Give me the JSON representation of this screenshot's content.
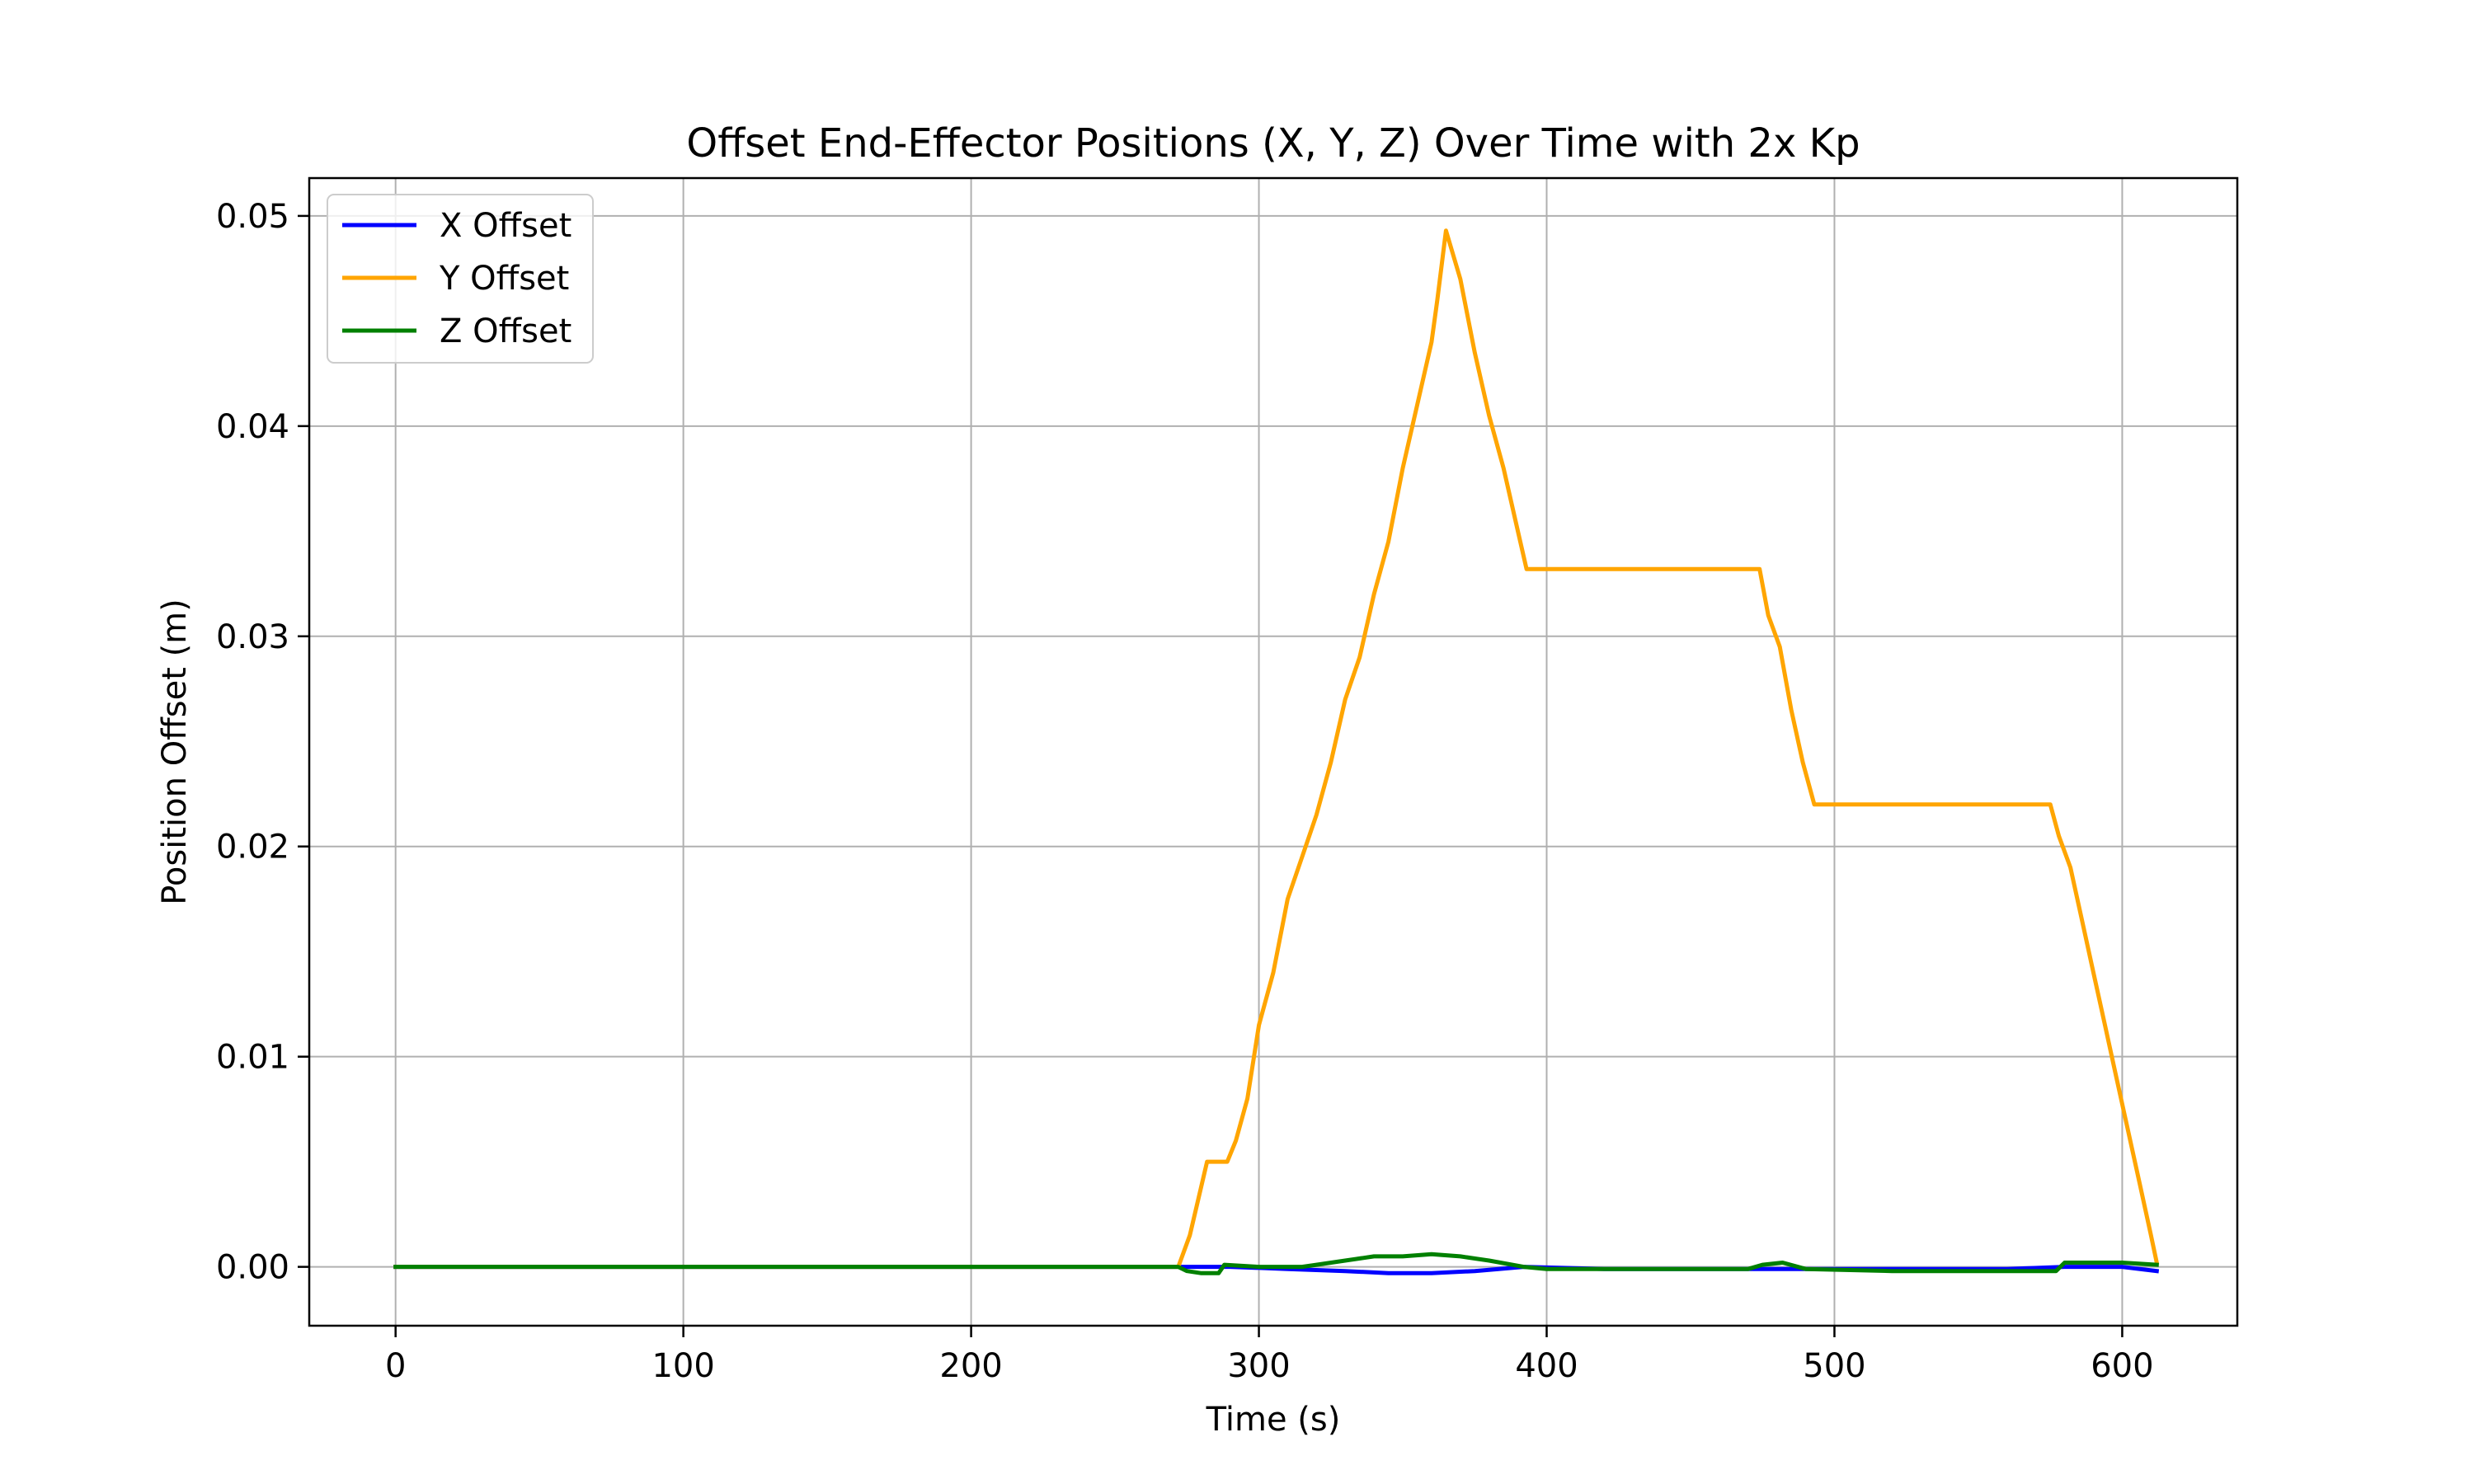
{
  "chart_data": {
    "type": "line",
    "title": "Offset End-Effector Positions (X, Y, Z) Over Time with 2x Kp",
    "xlabel": "Time (s)",
    "ylabel": "Position Offset (m)",
    "xlim": [
      -30,
      640
    ],
    "ylim": [
      -0.0028,
      0.0518
    ],
    "xticks": [
      0,
      100,
      200,
      300,
      400,
      500,
      600
    ],
    "xtick_labels": [
      "0",
      "100",
      "200",
      "300",
      "400",
      "500",
      "600"
    ],
    "yticks": [
      0.0,
      0.01,
      0.02,
      0.03,
      0.04,
      0.05
    ],
    "ytick_labels": [
      "0.00",
      "0.01",
      "0.02",
      "0.03",
      "0.04",
      "0.05"
    ],
    "grid": true,
    "legend": "upper-left",
    "series": [
      {
        "name": "X Offset",
        "color": "#0000ff",
        "points": [
          [
            0,
            0
          ],
          [
            272,
            0
          ],
          [
            290,
            0
          ],
          [
            310,
            -0.0001
          ],
          [
            330,
            -0.0002
          ],
          [
            345,
            -0.0003
          ],
          [
            360,
            -0.0003
          ],
          [
            375,
            -0.0002
          ],
          [
            392,
            0
          ],
          [
            420,
            -0.0001
          ],
          [
            470,
            -0.0001
          ],
          [
            490,
            -0.0001
          ],
          [
            520,
            -0.0001
          ],
          [
            560,
            -0.0001
          ],
          [
            580,
            0
          ],
          [
            600,
            0
          ],
          [
            612,
            -0.0002
          ]
        ]
      },
      {
        "name": "Y Offset",
        "color": "#ffa500",
        "points": [
          [
            0,
            0
          ],
          [
            272,
            0
          ],
          [
            276,
            0.0015
          ],
          [
            282,
            0.005
          ],
          [
            289,
            0.005
          ],
          [
            292,
            0.006
          ],
          [
            296,
            0.008
          ],
          [
            300,
            0.0115
          ],
          [
            305,
            0.014
          ],
          [
            310,
            0.0175
          ],
          [
            315,
            0.0195
          ],
          [
            320,
            0.0215
          ],
          [
            325,
            0.024
          ],
          [
            330,
            0.027
          ],
          [
            335,
            0.029
          ],
          [
            340,
            0.032
          ],
          [
            345,
            0.0345
          ],
          [
            350,
            0.038
          ],
          [
            355,
            0.041
          ],
          [
            360,
            0.044
          ],
          [
            362,
            0.046
          ],
          [
            365,
            0.0493
          ],
          [
            370,
            0.047
          ],
          [
            375,
            0.0435
          ],
          [
            380,
            0.0405
          ],
          [
            385,
            0.038
          ],
          [
            390,
            0.035
          ],
          [
            393,
            0.0332
          ],
          [
            400,
            0.0332
          ],
          [
            474,
            0.0332
          ],
          [
            477,
            0.031
          ],
          [
            481,
            0.0295
          ],
          [
            485,
            0.0265
          ],
          [
            489,
            0.024
          ],
          [
            493,
            0.022
          ],
          [
            500,
            0.022
          ],
          [
            575,
            0.022
          ],
          [
            578,
            0.0205
          ],
          [
            582,
            0.019
          ],
          [
            586,
            0.0165
          ],
          [
            590,
            0.014
          ],
          [
            594,
            0.0115
          ],
          [
            598,
            0.009
          ],
          [
            602,
            0.0065
          ],
          [
            606,
            0.004
          ],
          [
            610,
            0.0015
          ],
          [
            612,
            0.0002
          ]
        ]
      },
      {
        "name": "Z Offset",
        "color": "#008000",
        "points": [
          [
            0,
            0
          ],
          [
            272,
            0
          ],
          [
            275,
            -0.0002
          ],
          [
            280,
            -0.0003
          ],
          [
            286,
            -0.0003
          ],
          [
            288,
            0.0001
          ],
          [
            300,
            0
          ],
          [
            315,
            0
          ],
          [
            320,
            0.0001
          ],
          [
            330,
            0.0003
          ],
          [
            340,
            0.0005
          ],
          [
            350,
            0.0005
          ],
          [
            360,
            0.0006
          ],
          [
            370,
            0.0005
          ],
          [
            380,
            0.0003
          ],
          [
            392,
            0
          ],
          [
            400,
            -0.0001
          ],
          [
            470,
            -0.0001
          ],
          [
            475,
            0.0001
          ],
          [
            482,
            0.0002
          ],
          [
            490,
            -0.0001
          ],
          [
            520,
            -0.0002
          ],
          [
            560,
            -0.0002
          ],
          [
            577,
            -0.0002
          ],
          [
            580,
            0.0002
          ],
          [
            600,
            0.0002
          ],
          [
            612,
            0.0001
          ]
        ]
      }
    ]
  }
}
